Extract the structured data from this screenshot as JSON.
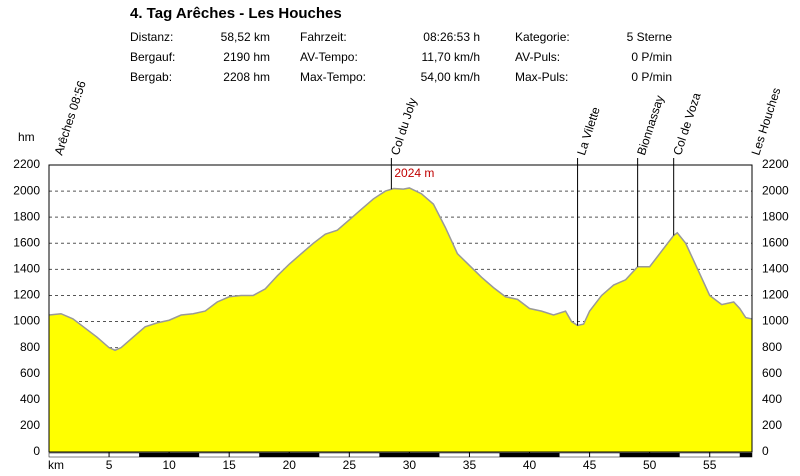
{
  "chart_data": {
    "type": "area",
    "title": "4. Tag Arêches - Les Houches",
    "info": [
      [
        [
          "Distanz:",
          "58,52 km"
        ],
        [
          "Bergauf:",
          "2190 hm"
        ],
        [
          "Bergab:",
          "2208 hm"
        ]
      ],
      [
        [
          "Fahrzeit:",
          "08:26:53 h"
        ],
        [
          "AV-Tempo:",
          "11,70 km/h"
        ],
        [
          "Max-Tempo:",
          "54,00 km/h"
        ]
      ],
      [
        [
          "Kategorie:",
          "5 Sterne"
        ],
        [
          "AV-Puls:",
          "0 P/min"
        ],
        [
          "Max-Puls:",
          "0 P/min"
        ]
      ]
    ],
    "y_label": "hm",
    "x_label": "km",
    "x": [
      0,
      1,
      2,
      3,
      4,
      5,
      5.5,
      6,
      7,
      8,
      9,
      10,
      11,
      12,
      13,
      14,
      15,
      16,
      17,
      18,
      19,
      20,
      21,
      22,
      23,
      24,
      25,
      26,
      27,
      28,
      28.7,
      29.5,
      30,
      31,
      32,
      33,
      34,
      35,
      36,
      37,
      38,
      39,
      40,
      41,
      42,
      43,
      43.5,
      44,
      44.5,
      45,
      46,
      47,
      48,
      49,
      50,
      51,
      52,
      52.3,
      53,
      54,
      55,
      56,
      57,
      57.5,
      58,
      58.52
    ],
    "values": [
      1050,
      1060,
      1020,
      950,
      880,
      800,
      780,
      800,
      880,
      960,
      990,
      1010,
      1050,
      1060,
      1080,
      1150,
      1190,
      1200,
      1200,
      1250,
      1350,
      1440,
      1520,
      1600,
      1670,
      1700,
      1780,
      1860,
      1940,
      2000,
      2020,
      2015,
      2024,
      1980,
      1900,
      1720,
      1520,
      1430,
      1340,
      1260,
      1190,
      1170,
      1100,
      1080,
      1050,
      1080,
      1000,
      970,
      980,
      1080,
      1200,
      1280,
      1320,
      1420,
      1420,
      1540,
      1660,
      1680,
      1600,
      1400,
      1200,
      1130,
      1150,
      1100,
      1030,
      1020
    ],
    "color": "#ffff00",
    "line_color": "#999999",
    "xlim": [
      0,
      58.52
    ],
    "ylim": [
      0,
      2200
    ],
    "xticks": [
      5,
      10,
      15,
      20,
      25,
      30,
      35,
      40,
      45,
      50,
      55
    ],
    "yticks": [
      0,
      200,
      400,
      600,
      800,
      1000,
      1200,
      1400,
      1600,
      1800,
      2000,
      2200
    ],
    "grid": true,
    "annotations": [
      {
        "x": 0,
        "label": "Arêches 08:56",
        "line": false
      },
      {
        "x": 28.5,
        "label": "Col du Joly",
        "line": true
      },
      {
        "x": 44,
        "label": "La Vilette",
        "line": true
      },
      {
        "x": 49,
        "label": "Bionnassay",
        "line": true
      },
      {
        "x": 52,
        "label": "Col de Voza",
        "line": true
      },
      {
        "x": 58.52,
        "label": "Les Houches",
        "line": false
      }
    ],
    "peak_label": {
      "x": 30,
      "y": 2024,
      "text": "2024 m"
    }
  }
}
